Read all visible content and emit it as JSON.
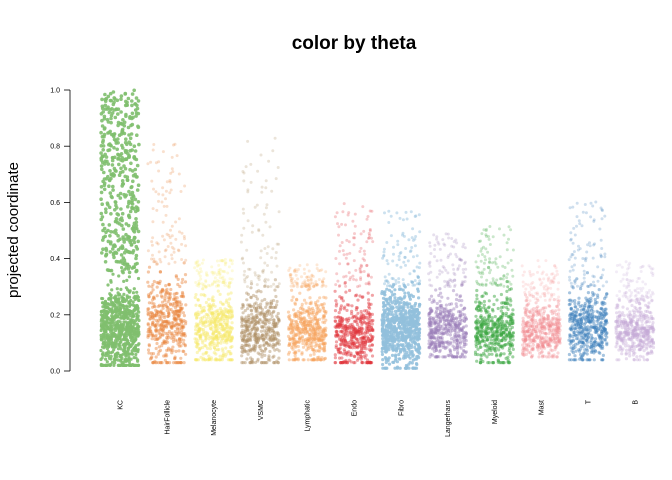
{
  "chart_data": {
    "type": "scatter",
    "title": "color by theta",
    "xlabel": "",
    "ylabel": "projected coordinate",
    "ylim": [
      0,
      1
    ],
    "yticks": [
      "0.0",
      "0.2",
      "0.4",
      "0.6",
      "0.8",
      "1.0"
    ],
    "grid": false,
    "legend": "none",
    "categories": [
      "KC",
      "HairFollicle",
      "Melanocyte",
      "VSMC",
      "Lymphatic",
      "Endo",
      "Fibro",
      "Langerhans",
      "Myeloid",
      "Mast",
      "T",
      "B"
    ],
    "series": [
      {
        "category": "KC",
        "color": "#7fbf6e",
        "opacity": 0.9,
        "median": 0.15,
        "dense_max": 0.35,
        "max": 1.0,
        "min": 0.02
      },
      {
        "category": "HairFollicle",
        "color": "#e8833a",
        "opacity": 0.45,
        "median": 0.18,
        "dense_max": 0.38,
        "max": 0.82,
        "min": 0.03
      },
      {
        "category": "Melanocyte",
        "color": "#f7e96a",
        "opacity": 0.45,
        "median": 0.15,
        "dense_max": 0.3,
        "max": 0.4,
        "min": 0.04
      },
      {
        "category": "VSMC",
        "color": "#b09066",
        "opacity": 0.45,
        "median": 0.14,
        "dense_max": 0.3,
        "max": 0.83,
        "min": 0.03
      },
      {
        "category": "Lymphatic",
        "color": "#f7a15a",
        "opacity": 0.45,
        "median": 0.14,
        "dense_max": 0.3,
        "max": 0.38,
        "min": 0.04
      },
      {
        "category": "Endo",
        "color": "#e0323a",
        "opacity": 0.45,
        "median": 0.13,
        "dense_max": 0.3,
        "max": 0.6,
        "min": 0.03
      },
      {
        "category": "Fibro",
        "color": "#92bfdc",
        "opacity": 0.85,
        "median": 0.15,
        "dense_max": 0.3,
        "max": 0.57,
        "min": 0.01
      },
      {
        "category": "Langerhans",
        "color": "#9a7cb8",
        "opacity": 0.45,
        "median": 0.15,
        "dense_max": 0.3,
        "max": 0.5,
        "min": 0.05
      },
      {
        "category": "Myeloid",
        "color": "#3ea843",
        "opacity": 0.5,
        "median": 0.15,
        "dense_max": 0.3,
        "max": 0.53,
        "min": 0.03
      },
      {
        "category": "Mast",
        "color": "#f28a8e",
        "opacity": 0.35,
        "median": 0.14,
        "dense_max": 0.25,
        "max": 0.4,
        "min": 0.05
      },
      {
        "category": "T",
        "color": "#3b7fba",
        "opacity": 0.45,
        "median": 0.16,
        "dense_max": 0.3,
        "max": 0.63,
        "min": 0.04
      },
      {
        "category": "B",
        "color": "#c5a9d6",
        "opacity": 0.4,
        "median": 0.14,
        "dense_max": 0.25,
        "max": 0.39,
        "min": 0.04
      }
    ]
  }
}
